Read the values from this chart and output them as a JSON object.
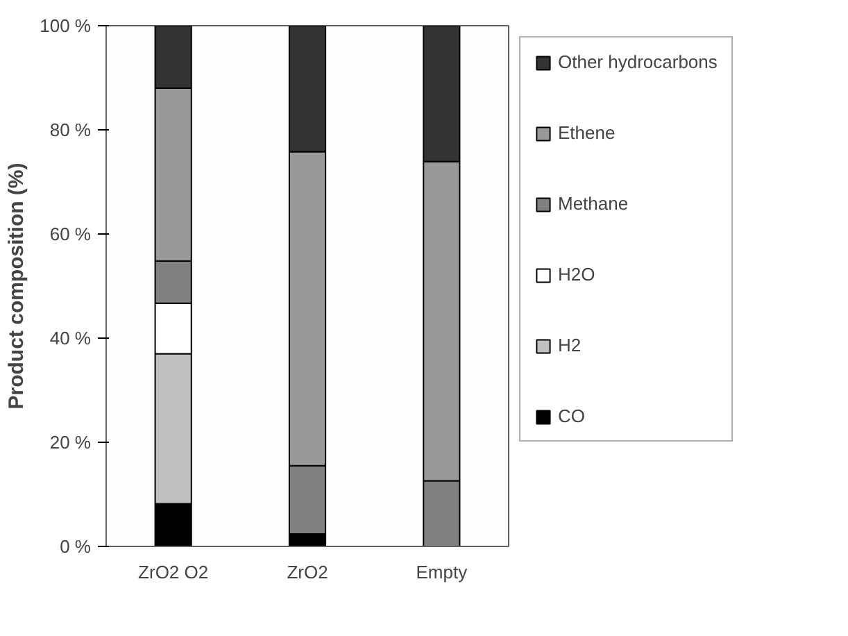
{
  "chart_data": {
    "type": "bar",
    "stacked": true,
    "ylabel": "Product composition (%)",
    "categories": [
      "ZrO2 O2",
      "ZrO2",
      "Empty"
    ],
    "series": [
      {
        "name": "CO",
        "color": "#000000",
        "values": [
          8.2,
          2.4,
          null
        ]
      },
      {
        "name": "H2",
        "color": "#c0c0c0",
        "values": [
          28.8,
          null,
          null
        ]
      },
      {
        "name": "H2O",
        "color": "#ffffff",
        "values": [
          9.7,
          null,
          null
        ]
      },
      {
        "name": "Methane",
        "color": "#808080",
        "values": [
          8.1,
          13.1,
          12.6
        ]
      },
      {
        "name": "Ethene",
        "color": "#999999",
        "values": [
          33.2,
          60.3,
          61.3
        ]
      },
      {
        "name": "Other hydrocarbons",
        "color": "#333333",
        "values": [
          12.0,
          24.2,
          26.1
        ]
      }
    ],
    "ylim": [
      0,
      100
    ],
    "yticks": [
      {
        "value": 0,
        "label": "0 %"
      },
      {
        "value": 20,
        "label": "20 %"
      },
      {
        "value": 40,
        "label": "40 %"
      },
      {
        "value": 60,
        "label": "60 %"
      },
      {
        "value": 80,
        "label": "80 %"
      },
      {
        "value": 100,
        "label": "100 %"
      }
    ],
    "grid": false,
    "legend": "right"
  }
}
